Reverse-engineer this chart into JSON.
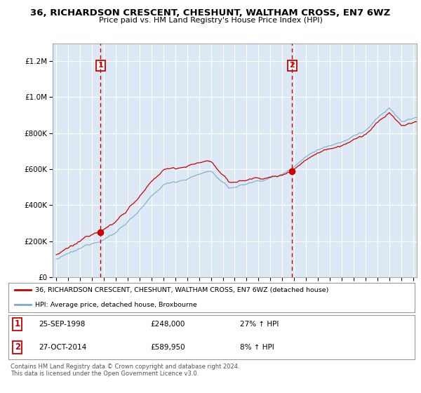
{
  "title": "36, RICHARDSON CRESCENT, CHESHUNT, WALTHAM CROSS, EN7 6WZ",
  "subtitle": "Price paid vs. HM Land Registry's House Price Index (HPI)",
  "hpi_label": "HPI: Average price, detached house, Broxbourne",
  "property_label": "36, RICHARDSON CRESCENT, CHESHUNT, WALTHAM CROSS, EN7 6WZ (detached house)",
  "sale1_date": "25-SEP-1998",
  "sale1_price": 248000,
  "sale1_pct": "27% ↑ HPI",
  "sale2_date": "27-OCT-2014",
  "sale2_price": 589950,
  "sale2_pct": "8% ↑ HPI",
  "sale1_marker_x": 1998.73,
  "sale2_marker_x": 2014.83,
  "red_color": "#cc0000",
  "blue_color": "#7aadcc",
  "chart_bg": "#dce9f5",
  "background_color": "#ffffff",
  "grid_color": "#ffffff",
  "ylim": [
    0,
    1300000
  ],
  "xlim_start": 1994.7,
  "xlim_end": 2025.3,
  "footer": "Contains HM Land Registry data © Crown copyright and database right 2024.\nThis data is licensed under the Open Government Licence v3.0."
}
